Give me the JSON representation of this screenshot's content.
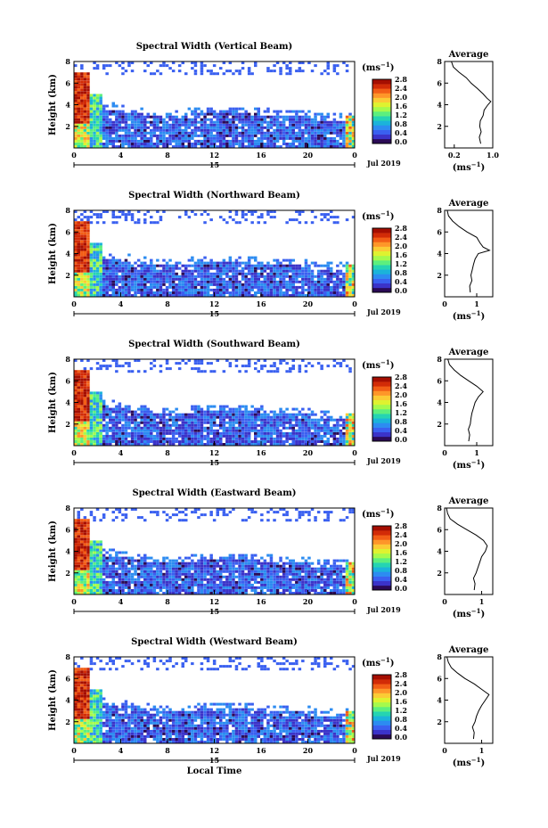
{
  "figure": {
    "xlabel": "Local Time",
    "date_label": "Jul 2019",
    "day_label": "15",
    "colorbar_unit": "(ms",
    "unit_exponent": "−1",
    "unit_close": ")",
    "avg_title": "Average",
    "colormap": [
      "#2b0a56",
      "#3b33c9",
      "#3a60f0",
      "#2c8cf1",
      "#1bb3da",
      "#25d4b2",
      "#5cef7e",
      "#a5fa4c",
      "#dff230",
      "#fbcb35",
      "#fe9629",
      "#f25e16",
      "#d22b07",
      "#a50e01"
    ]
  },
  "chart_data": [
    {
      "type": "heatmap",
      "title": "Spectral Width (Vertical Beam)",
      "ylabel": "Height (km)",
      "xlim": [
        0,
        24
      ],
      "ylim": [
        0,
        8
      ],
      "x_ticks": [
        "0",
        "4",
        "8",
        "12",
        "16",
        "20",
        "0"
      ],
      "y_ticks": [
        "2",
        "4",
        "6",
        "8"
      ],
      "colorbar_ticks": [
        "0.0",
        "0.4",
        "0.8",
        "1.2",
        "1.6",
        "2.0",
        "2.4",
        "2.8"
      ],
      "colorbar_range": [
        0,
        2.8
      ],
      "profile": {
        "xlim": [
          0,
          1.0
        ],
        "x_ticks": [
          "0.2",
          "1.0"
        ],
        "y_ticks": [
          "2",
          "4",
          "6",
          "8"
        ],
        "height_km": [
          0.4,
          1,
          1.5,
          2,
          2.5,
          3,
          3.5,
          4,
          4.3,
          4.6,
          5,
          5.5,
          6,
          6.5,
          7,
          7.5,
          8
        ],
        "width": [
          0.75,
          0.72,
          0.76,
          0.73,
          0.74,
          0.8,
          0.82,
          0.9,
          0.96,
          0.88,
          0.8,
          0.68,
          0.55,
          0.45,
          0.3,
          0.18,
          0.14
        ]
      }
    },
    {
      "type": "heatmap",
      "title": "Spectral Width (Northward Beam)",
      "ylabel": "Height (km)",
      "xlim": [
        0,
        24
      ],
      "ylim": [
        0,
        8
      ],
      "x_ticks": [
        "0",
        "4",
        "8",
        "12",
        "16",
        "20",
        "0"
      ],
      "y_ticks": [
        "2",
        "4",
        "6",
        "8"
      ],
      "colorbar_ticks": [
        "0.0",
        "0.4",
        "0.8",
        "1.2",
        "1.6",
        "2.0",
        "2.4",
        "2.8"
      ],
      "colorbar_range": [
        0,
        2.8
      ],
      "profile": {
        "xlim": [
          0,
          1.5
        ],
        "x_ticks": [
          "0",
          "1"
        ],
        "y_ticks": [
          "2",
          "4",
          "6",
          "8"
        ],
        "height_km": [
          0.4,
          1,
          1.5,
          2,
          2.5,
          3,
          3.5,
          4,
          4.3,
          4.6,
          5,
          5.5,
          6,
          6.5,
          7,
          7.5,
          8
        ],
        "width": [
          0.8,
          0.78,
          0.85,
          0.82,
          0.86,
          0.9,
          0.95,
          1.05,
          1.4,
          1.2,
          1.1,
          1.0,
          0.7,
          0.45,
          0.25,
          0.12,
          0.08
        ]
      }
    },
    {
      "type": "heatmap",
      "title": "Spectral Width (Southward Beam)",
      "ylabel": "Height (km)",
      "xlim": [
        0,
        24
      ],
      "ylim": [
        0,
        8
      ],
      "x_ticks": [
        "0",
        "4",
        "8",
        "12",
        "16",
        "20",
        "0"
      ],
      "y_ticks": [
        "2",
        "4",
        "6",
        "8"
      ],
      "colorbar_ticks": [
        "0.0",
        "0.4",
        "0.8",
        "1.2",
        "1.6",
        "2.0",
        "2.4",
        "2.8"
      ],
      "colorbar_range": [
        0,
        2.8
      ],
      "profile": {
        "xlim": [
          0,
          1.5
        ],
        "x_ticks": [
          "0",
          "1"
        ],
        "y_ticks": [
          "2",
          "4",
          "6",
          "8"
        ],
        "height_km": [
          0.4,
          1,
          1.5,
          2,
          2.5,
          3,
          3.5,
          4,
          4.5,
          5,
          5.5,
          6,
          6.5,
          7,
          7.5,
          8
        ],
        "width": [
          0.75,
          0.78,
          0.74,
          0.8,
          0.82,
          0.85,
          0.9,
          0.95,
          1.05,
          1.2,
          1.0,
          0.75,
          0.5,
          0.3,
          0.15,
          0.1
        ]
      }
    },
    {
      "type": "heatmap",
      "title": "Spectral Width (Eastward Beam)",
      "ylabel": "Height (km)",
      "xlim": [
        0,
        24
      ],
      "ylim": [
        0,
        8
      ],
      "x_ticks": [
        "0",
        "4",
        "8",
        "12",
        "16",
        "20",
        "0"
      ],
      "y_ticks": [
        "2",
        "4",
        "6",
        "8"
      ],
      "colorbar_ticks": [
        "0.0",
        "0.4",
        "0.8",
        "1.2",
        "1.6",
        "2.0",
        "2.4",
        "2.8"
      ],
      "colorbar_range": [
        0,
        2.8
      ],
      "profile": {
        "xlim": [
          0,
          1.3
        ],
        "x_ticks": [
          "0",
          "1"
        ],
        "y_ticks": [
          "2",
          "4",
          "6",
          "8"
        ],
        "height_km": [
          0.4,
          1,
          1.5,
          2,
          2.5,
          3,
          3.5,
          4,
          4.5,
          5,
          5.5,
          6,
          6.5,
          7,
          7.5,
          8
        ],
        "width": [
          0.8,
          0.82,
          0.78,
          0.85,
          0.9,
          0.95,
          1.0,
          1.1,
          1.15,
          1.05,
          0.85,
          0.6,
          0.35,
          0.15,
          0.08,
          0.05
        ]
      }
    },
    {
      "type": "heatmap",
      "title": "Spectral Width (Westward Beam)",
      "ylabel": "Height (km)",
      "xlim": [
        0,
        24
      ],
      "ylim": [
        0,
        8
      ],
      "x_ticks": [
        "0",
        "4",
        "8",
        "12",
        "16",
        "20",
        "0"
      ],
      "y_ticks": [
        "2",
        "4",
        "6",
        "8"
      ],
      "colorbar_ticks": [
        "0.0",
        "0.4",
        "0.8",
        "1.2",
        "1.6",
        "2.0",
        "2.4",
        "2.8"
      ],
      "colorbar_range": [
        0,
        2.8
      ],
      "profile": {
        "xlim": [
          0,
          1.3
        ],
        "x_ticks": [
          "0",
          "1"
        ],
        "y_ticks": [
          "2",
          "4",
          "6",
          "8"
        ],
        "height_km": [
          0.4,
          1,
          1.5,
          2,
          2.5,
          3,
          3.5,
          4,
          4.5,
          5,
          5.5,
          6,
          6.5,
          7,
          7.5,
          8
        ],
        "width": [
          0.78,
          0.8,
          0.75,
          0.82,
          0.86,
          0.92,
          1.0,
          1.1,
          1.2,
          1.0,
          0.8,
          0.55,
          0.35,
          0.18,
          0.1,
          0.06
        ]
      }
    }
  ]
}
